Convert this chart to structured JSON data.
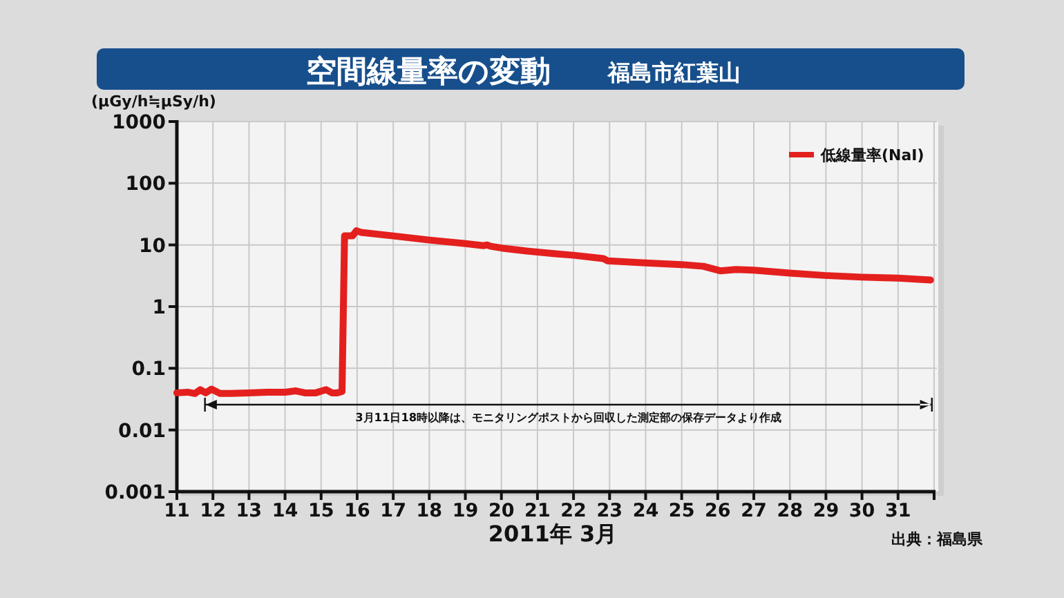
{
  "chart_data": {
    "type": "line",
    "title": "空間線量率の変動",
    "subtitle": "福島市紅葉山",
    "xlabel": "2011年 3月",
    "ylabel": "(µGy/h≒µSy/h)",
    "xlim": [
      11,
      32
    ],
    "xticks": [
      11,
      12,
      13,
      14,
      15,
      16,
      17,
      18,
      19,
      20,
      21,
      22,
      23,
      24,
      25,
      26,
      27,
      28,
      29,
      30,
      31,
      {
        "value": 32,
        "label": null
      }
    ],
    "ylim": [
      0.001,
      1000
    ],
    "yticks": [
      0.001,
      0.01,
      0.1,
      1,
      10,
      100,
      1000
    ],
    "log": true,
    "grid": true,
    "legend": "top right",
    "line_style": "solid",
    "series": [
      {
        "name": "低線量率(NaI)",
        "color": "#e3201e",
        "x": [
          11,
          11.3,
          11.5,
          11.65,
          11.8,
          11.96,
          12.2,
          12.5,
          13,
          13.5,
          14,
          14.3,
          14.55,
          14.85,
          15.14,
          15.3,
          15.45,
          15.58,
          15.65,
          15.87,
          15.98,
          16.1,
          17,
          18,
          19,
          19.5,
          19.6,
          19.7,
          20,
          20.66,
          21.5,
          22,
          22.83,
          22.95,
          24,
          25,
          25.6,
          26.07,
          26.5,
          27,
          28,
          28.96,
          30,
          31,
          31.9
        ],
        "values": [
          0.04,
          0.041,
          0.039,
          0.045,
          0.04,
          0.046,
          0.039,
          0.039,
          0.04,
          0.041,
          0.041,
          0.043,
          0.04,
          0.04,
          0.045,
          0.04,
          0.04,
          0.042,
          14,
          14,
          17,
          16,
          14,
          12,
          10.5,
          9.7,
          10,
          9.5,
          8.9,
          8,
          7.2,
          6.8,
          6,
          5.5,
          5.1,
          4.8,
          4.5,
          3.8,
          4,
          3.9,
          3.5,
          3.2,
          3,
          2.9,
          2.7
        ]
      }
    ],
    "annotations": [
      "3月11日18時以降は、モニタリングポストから回収した測定部の保存データより作成",
      "出典：福島県"
    ]
  }
}
